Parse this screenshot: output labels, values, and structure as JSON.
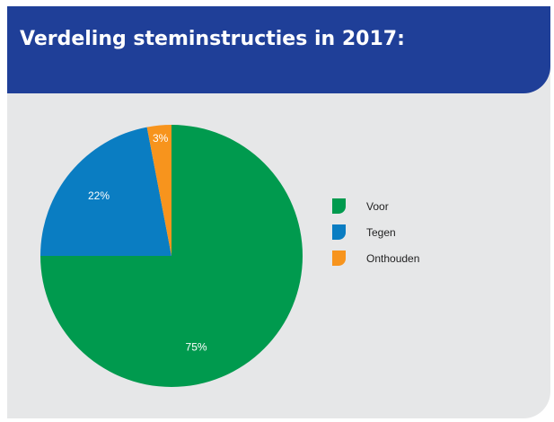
{
  "title": "Verdeling steminstructies in 2017:",
  "colors": {
    "header": "#1f3f98",
    "panel": "#e6e7e8",
    "voor": "#009a4e",
    "tegen": "#0a7dc2",
    "onthouden": "#f7941d"
  },
  "chart_data": {
    "type": "pie",
    "title": "Verdeling steminstructies in 2017:",
    "slices": [
      {
        "label": "Voor",
        "value": 75,
        "display": "75%",
        "color": "#009a4e"
      },
      {
        "label": "Tegen",
        "value": 22,
        "display": "22%",
        "color": "#0a7dc2"
      },
      {
        "label": "Onthouden",
        "value": 3,
        "display": "3%",
        "color": "#f7941d"
      }
    ],
    "legend_position": "right"
  }
}
